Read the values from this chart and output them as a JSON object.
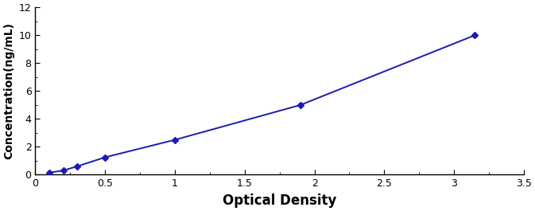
{
  "x": [
    0.1,
    0.2,
    0.3,
    0.5,
    1.0,
    1.9,
    3.15
  ],
  "y": [
    0.15,
    0.3,
    0.6,
    1.25,
    2.5,
    5.0,
    10.0
  ],
  "yerr": [
    0.05,
    0.05,
    0.05,
    0.06,
    0.06,
    0.08,
    0.08
  ],
  "line_color": "#1C1CB0",
  "marker": "D",
  "marker_size": 4,
  "xlabel": "Optical Density",
  "ylabel": "Concentration(ng/mL)",
  "xlim": [
    0,
    3.5
  ],
  "ylim": [
    0,
    12
  ],
  "xticks": [
    0,
    0.5,
    1.0,
    1.5,
    2.0,
    2.5,
    3.0,
    3.5
  ],
  "yticks": [
    0,
    2,
    4,
    6,
    8,
    10,
    12
  ],
  "xlabel_fontsize": 12,
  "ylabel_fontsize": 10,
  "tick_fontsize": 9,
  "xlabel_fontweight": "bold",
  "ylabel_fontweight": "bold",
  "background_color": "#ffffff",
  "linewidth": 1.4
}
